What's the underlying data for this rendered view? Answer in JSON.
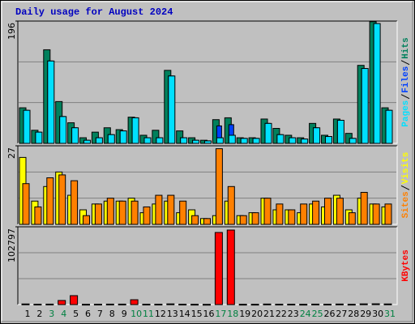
{
  "chart_data": [
    {
      "type": "bar",
      "title": "Daily usage for August 2024",
      "ylim": [
        0,
        196
      ],
      "yticks": [
        196
      ],
      "series": [
        {
          "name": "Pages",
          "color": "#00e0ff",
          "values": [
            53,
            18,
            132,
            43,
            25,
            5,
            9,
            14,
            20,
            41,
            9,
            9,
            108,
            9,
            5,
            4,
            9,
            13,
            8,
            8,
            32,
            14,
            9,
            7,
            25,
            11,
            37,
            8,
            120,
            192,
            53
          ]
        },
        {
          "name": "Files",
          "color": "#0040ff",
          "values": [
            53,
            18,
            132,
            43,
            25,
            5,
            9,
            14,
            20,
            41,
            9,
            9,
            108,
            9,
            5,
            4,
            28,
            30,
            8,
            8,
            32,
            14,
            9,
            7,
            25,
            11,
            37,
            8,
            120,
            192,
            53
          ]
        },
        {
          "name": "Hits",
          "color": "#00805c",
          "values": [
            57,
            21,
            150,
            67,
            33,
            9,
            18,
            25,
            22,
            42,
            13,
            21,
            117,
            20,
            9,
            5,
            38,
            41,
            9,
            9,
            39,
            24,
            13,
            9,
            32,
            13,
            39,
            16,
            125,
            195,
            57
          ]
        }
      ]
    },
    {
      "type": "bar",
      "ylim": [
        0,
        27
      ],
      "yticks": [
        27
      ],
      "series": [
        {
          "name": "Sites",
          "color": "#ff8000",
          "values": [
            14,
            6,
            16,
            17,
            15,
            3,
            7,
            9,
            8,
            8,
            6,
            10,
            10,
            8,
            3,
            2,
            26,
            13,
            3,
            4,
            9,
            7,
            5,
            7,
            8,
            9,
            9,
            4,
            11,
            7,
            7
          ]
        },
        {
          "name": "Visits",
          "color": "#ffff00",
          "values": [
            23,
            8,
            13,
            18,
            10,
            5,
            7,
            8,
            8,
            9,
            4,
            7,
            8,
            4,
            5,
            2,
            3,
            8,
            3,
            4,
            9,
            5,
            5,
            4,
            7,
            6,
            10,
            5,
            9,
            7,
            6
          ]
        }
      ]
    },
    {
      "type": "bar",
      "ylim": [
        0,
        102797
      ],
      "yticks": [
        102797
      ],
      "series": [
        {
          "name": "KBytes",
          "color": "#ff0000",
          "values": [
            800,
            500,
            600,
            5400,
            11800,
            400,
            500,
            600,
            600,
            6400,
            500,
            500,
            900,
            500,
            400,
            300,
            95300,
            98500,
            400,
            400,
            700,
            500,
            500,
            400,
            600,
            500,
            700,
            400,
            900,
            1000,
            800
          ]
        }
      ],
      "categories": [
        "1",
        "2",
        "3",
        "4",
        "5",
        "6",
        "7",
        "8",
        "9",
        "10",
        "11",
        "12",
        "13",
        "14",
        "15",
        "16",
        "17",
        "18",
        "19",
        "20",
        "21",
        "22",
        "23",
        "24",
        "25",
        "26",
        "27",
        "28",
        "29",
        "30",
        "31"
      ],
      "category_colors": [
        "#000000",
        "#000000",
        "#008040",
        "#008040",
        "#000000",
        "#000000",
        "#000000",
        "#000000",
        "#000000",
        "#008040",
        "#008040",
        "#000000",
        "#000000",
        "#000000",
        "#000000",
        "#000000",
        "#008040",
        "#008040",
        "#000000",
        "#000000",
        "#000000",
        "#000000",
        "#000000",
        "#008040",
        "#008040",
        "#000000",
        "#000000",
        "#000000",
        "#000000",
        "#000000",
        "#008040"
      ]
    }
  ]
}
